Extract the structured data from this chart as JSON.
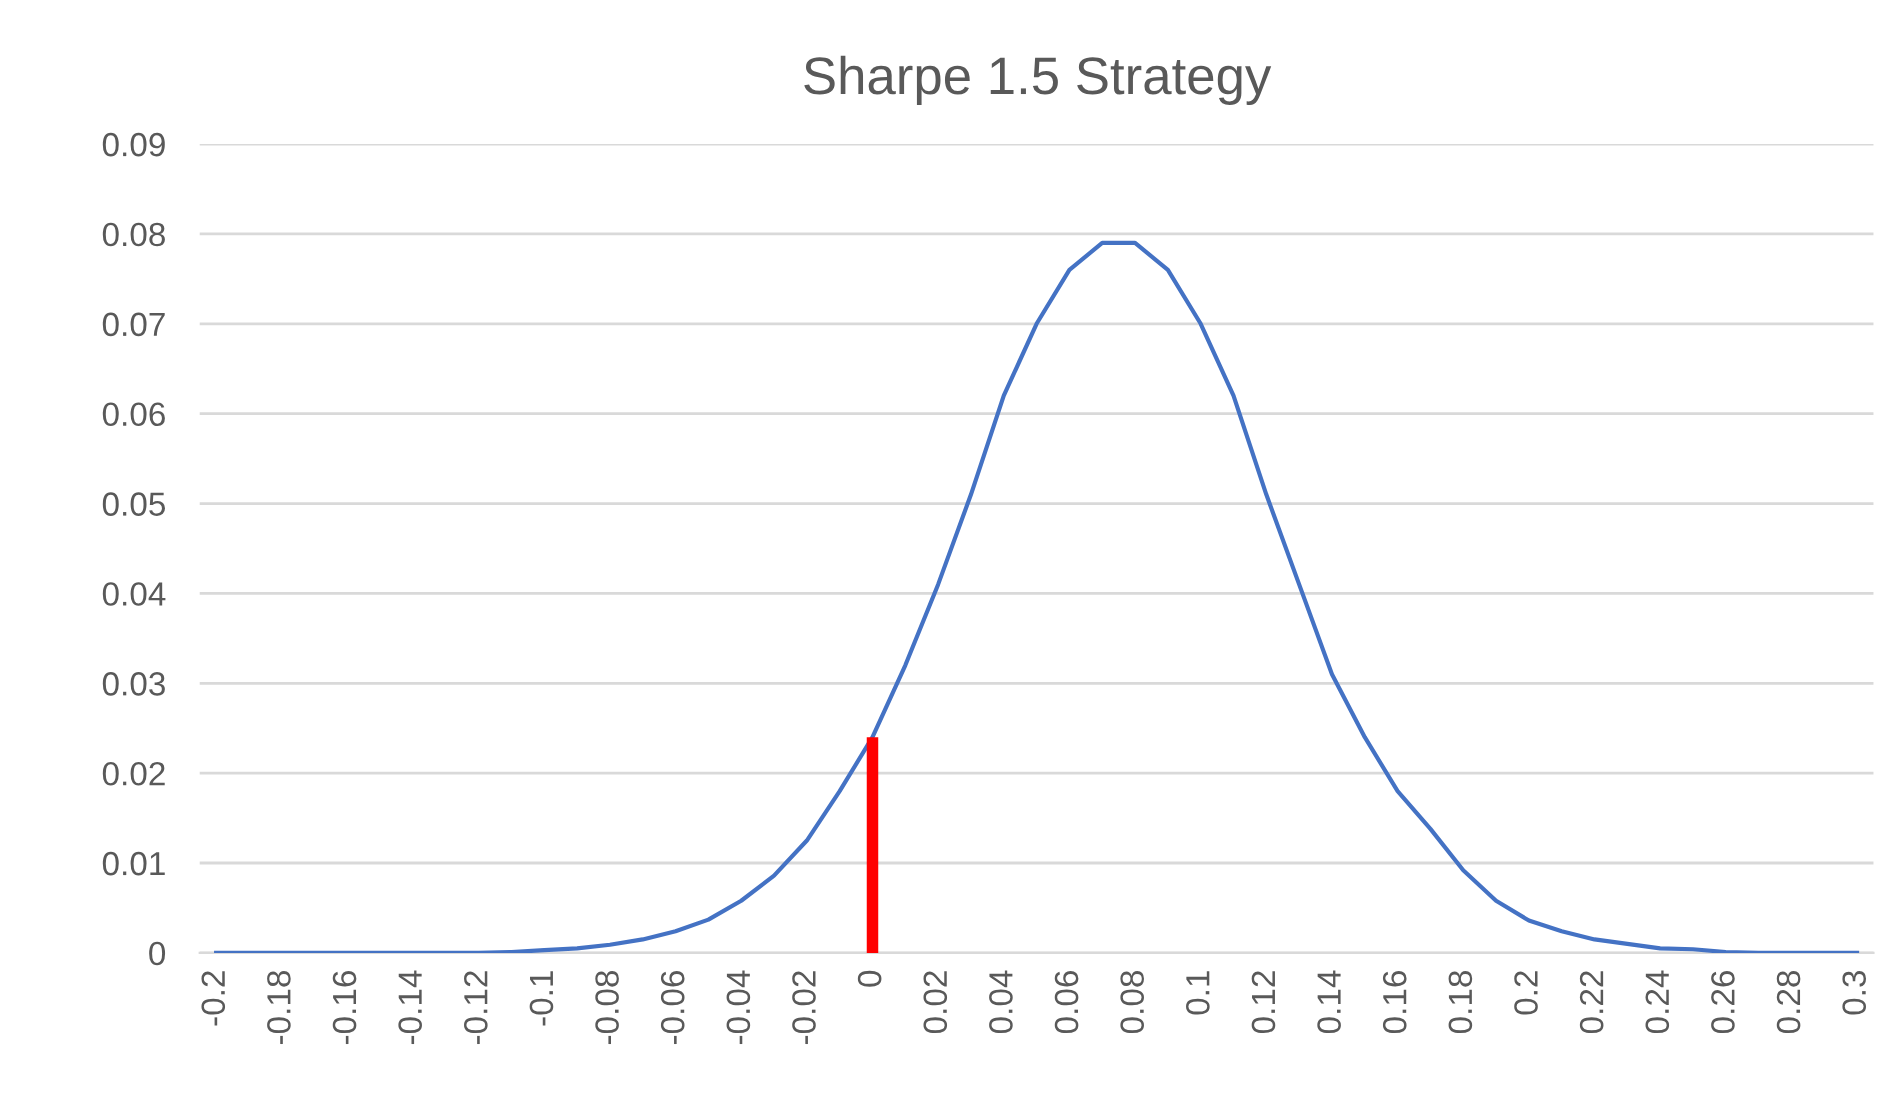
{
  "chart_data": {
    "type": "line",
    "title": "Sharpe 1.5 Strategy",
    "categories": [
      "-0.2",
      null,
      "-0.18",
      null,
      "-0.16",
      null,
      "-0.14",
      null,
      "-0.12",
      null,
      "-0.1",
      null,
      "-0.08",
      null,
      "-0.06",
      null,
      "-0.04",
      null,
      "-0.02",
      null,
      "0",
      null,
      "0.02",
      null,
      "0.04",
      null,
      "0.06",
      null,
      "0.08",
      null,
      "0.1",
      null,
      "0.12",
      null,
      "0.14",
      null,
      "0.16",
      null,
      "0.18",
      null,
      "0.2",
      null,
      "0.22",
      null,
      "0.24",
      null,
      "0.26",
      null,
      "0.28",
      null,
      "0.3"
    ],
    "series": [
      {
        "color": "#4472c4",
        "values": [
          0,
          0,
          0,
          0,
          0,
          0,
          0,
          0,
          0,
          0.0001,
          0.0003,
          0.0005,
          0.0009,
          0.0015,
          0.0024,
          0.0037,
          0.0058,
          0.0086,
          0.0125,
          0.018,
          0.024,
          0.032,
          0.041,
          0.051,
          0.062,
          0.07,
          0.076,
          0.079,
          0.079,
          0.076,
          0.07,
          0.062,
          0.051,
          0.041,
          0.031,
          0.024,
          0.018,
          0.0138,
          0.0092,
          0.0058,
          0.0036,
          0.0024,
          0.0015,
          0.001,
          0.0005,
          0.0004,
          0.0001,
          0,
          0,
          0,
          0
        ]
      },
      {
        "type": "bar",
        "color": "#ff0000",
        "values": [
          null,
          null,
          null,
          null,
          null,
          null,
          null,
          null,
          null,
          null,
          null,
          null,
          null,
          null,
          null,
          null,
          null,
          null,
          null,
          null,
          0.024,
          null,
          null,
          null,
          null,
          null,
          null,
          null,
          null,
          null,
          null,
          null,
          null,
          null,
          null,
          null,
          null,
          null,
          null,
          null,
          null,
          null,
          null,
          null,
          null,
          null,
          null,
          null,
          null,
          null,
          null
        ]
      }
    ],
    "ylim": [
      0,
      0.09
    ],
    "yticks": [
      0,
      0.01,
      0.02,
      0.03,
      0.04,
      0.05,
      0.06,
      0.07,
      0.08,
      0.09
    ],
    "grid": "y",
    "legend": false
  }
}
